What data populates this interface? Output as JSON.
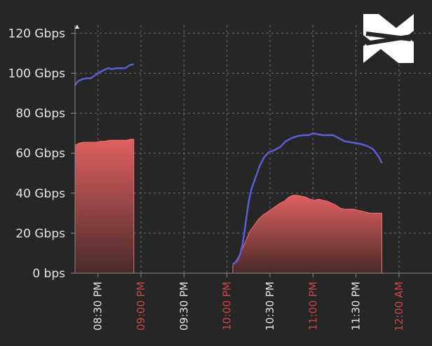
{
  "chart_data": {
    "type": "area",
    "yticks": [
      "0 bps",
      "20 Gbps",
      "40 Gbps",
      "60 Gbps",
      "80 Gbps",
      "100 Gbps",
      "120 Gbps"
    ],
    "ytick_values": [
      0,
      20,
      40,
      60,
      80,
      100,
      120
    ],
    "xticks": [
      {
        "label": "08:30 PM",
        "t": 30,
        "major": false
      },
      {
        "label": "09:00 PM",
        "t": 60,
        "major": true
      },
      {
        "label": "09:30 PM",
        "t": 90,
        "major": false
      },
      {
        "label": "10:00 PM",
        "t": 120,
        "major": true
      },
      {
        "label": "10:30 PM",
        "t": 150,
        "major": false
      },
      {
        "label": "11:00 PM",
        "t": 180,
        "major": true
      },
      {
        "label": "11:30 PM",
        "t": 210,
        "major": false
      },
      {
        "label": "12:00 AM",
        "t": 240,
        "major": true
      }
    ],
    "x_unit": "minutes after 08:00 PM",
    "xlim": [
      14,
      263
    ],
    "ylim": [
      0,
      124
    ],
    "grid": true,
    "colors": {
      "line": "#5c5cd6",
      "area_top": "#e06060",
      "area_bottom": "#4a2a2a",
      "major_tick": "#c9474b"
    },
    "series": [
      {
        "kind": "line",
        "segments": [
          [
            [
              14,
              94
            ],
            [
              16,
              96
            ],
            [
              19,
              97
            ],
            [
              22,
              97.5
            ],
            [
              25,
              97.5
            ],
            [
              28,
              99
            ],
            [
              31,
              100.5
            ],
            [
              34,
              101.5
            ],
            [
              37,
              102.5
            ],
            [
              40,
              102
            ],
            [
              43,
              102.5
            ],
            [
              46,
              102.5
            ],
            [
              49,
              102.5
            ],
            [
              52,
              104
            ],
            [
              55,
              104.5
            ]
          ],
          [
            [
              124,
              4.5
            ],
            [
              127,
              6
            ],
            [
              129,
              9
            ],
            [
              131,
              15
            ],
            [
              133,
              25
            ],
            [
              135,
              35
            ],
            [
              137,
              42
            ],
            [
              140,
              48
            ],
            [
              143,
              54
            ],
            [
              146,
              58
            ],
            [
              149,
              60.5
            ],
            [
              153,
              61.5
            ],
            [
              157,
              63
            ],
            [
              161,
              66
            ],
            [
              165,
              67.5
            ],
            [
              169,
              68.5
            ],
            [
              173,
              69
            ],
            [
              177,
              69
            ],
            [
              180,
              70
            ],
            [
              183,
              69.5
            ],
            [
              187,
              69
            ],
            [
              190,
              69
            ],
            [
              194,
              69
            ],
            [
              198,
              67.5
            ],
            [
              202,
              66
            ],
            [
              206,
              65.5
            ],
            [
              210,
              65
            ],
            [
              214,
              64.5
            ],
            [
              218,
              63.5
            ],
            [
              222,
              62
            ],
            [
              226,
              58
            ],
            [
              228,
              55
            ]
          ]
        ]
      },
      {
        "kind": "area",
        "segments": [
          [
            [
              14,
              64
            ],
            [
              17,
              65
            ],
            [
              20,
              65.5
            ],
            [
              23,
              65.5
            ],
            [
              26,
              65.5
            ],
            [
              29,
              65.5
            ],
            [
              32,
              66
            ],
            [
              35,
              66
            ],
            [
              38,
              66.5
            ],
            [
              41,
              66.5
            ],
            [
              44,
              66.5
            ],
            [
              47,
              66.5
            ],
            [
              50,
              66.5
            ],
            [
              53,
              67
            ],
            [
              55,
              67
            ]
          ],
          [
            [
              124,
              4
            ],
            [
              127,
              7
            ],
            [
              130,
              11
            ],
            [
              133,
              16
            ],
            [
              136,
              21
            ],
            [
              139,
              24
            ],
            [
              142,
              27
            ],
            [
              145,
              29
            ],
            [
              148,
              30.5
            ],
            [
              151,
              32
            ],
            [
              154,
              33.5
            ],
            [
              157,
              35
            ],
            [
              160,
              36
            ],
            [
              163,
              38
            ],
            [
              166,
              39
            ],
            [
              169,
              39
            ],
            [
              172,
              38.5
            ],
            [
              175,
              38
            ],
            [
              178,
              37
            ],
            [
              181,
              36.5
            ],
            [
              184,
              37
            ],
            [
              187,
              36.5
            ],
            [
              190,
              36
            ],
            [
              193,
              35
            ],
            [
              196,
              34
            ],
            [
              199,
              32.5
            ],
            [
              202,
              32
            ],
            [
              205,
              32
            ],
            [
              208,
              32
            ],
            [
              211,
              31.5
            ],
            [
              214,
              31
            ],
            [
              217,
              30.5
            ],
            [
              220,
              30
            ],
            [
              228,
              30
            ]
          ]
        ]
      }
    ]
  }
}
